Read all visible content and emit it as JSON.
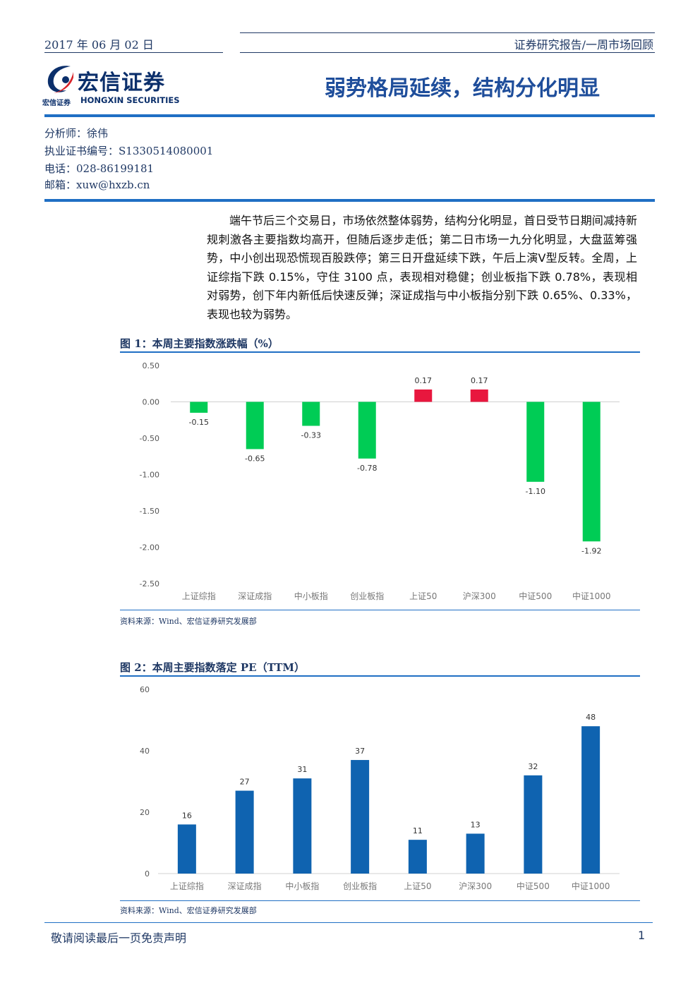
{
  "header": {
    "date": "2017 年 06 月 02 日",
    "report_type": "证券研究报告/一周市场回顾"
  },
  "logo": {
    "name_cn": "宏信证券",
    "name_en": "HONGXIN SECURITIES",
    "name_small": "宏信证券"
  },
  "title": "弱势格局延续，结构分化明显",
  "analyst": {
    "name": "分析师：徐伟",
    "cert": "执业证书编号：S1330514080001",
    "phone": "电话：028-86199181",
    "email": "邮箱：xuw@hxzb.cn"
  },
  "summary": "端午节后三个交易日，市场依然整体弱势，结构分化明显，首日受节日期间减持新规刺激各主要指数均高开，但随后逐步走低；第二日市场一九分化明显，大盘蓝筹强势，中小创出现恐慌现百股跌停；第三日开盘延续下跌，午后上演V型反转。全周，上证综指下跌 0.15%，守住 3100 点，表现相对稳健；创业板指下跌 0.78%，表现相对弱势，创下年内新低后快速反弹；深证成指与中小板指分别下跌 0.65%、0.33%，表现也较为弱势。",
  "figure1": {
    "title": "图 1：本周主要指数涨跌幅（%）",
    "source": "资料来源：Wind、宏信证券研究发展部"
  },
  "figure2": {
    "title": "图 2：本周主要指数落定 PE（TTM）",
    "source": "资料来源：Wind、宏信证券研究发展部"
  },
  "chart_data": [
    {
      "type": "bar",
      "title": "图 1：本周主要指数涨跌幅（%）",
      "categories": [
        "上证综指",
        "深证成指",
        "中小板指",
        "创业板指",
        "上证50",
        "沪深300",
        "中证500",
        "中证1000"
      ],
      "values": [
        -0.15,
        -0.65,
        -0.33,
        -0.78,
        0.17,
        0.17,
        -1.1,
        -1.92
      ],
      "value_labels": [
        "-0.15",
        "-0.65",
        "-0.33",
        "-0.78",
        "0.17",
        "0.17",
        "-1.10",
        "-1.92"
      ],
      "ylim": [
        -2.5,
        0.5
      ],
      "yticks": [
        "0.50",
        "0.00",
        "-0.50",
        "-1.00",
        "-1.50",
        "-2.00",
        "-2.50"
      ],
      "ytick_values": [
        0.5,
        0,
        -0.5,
        -1,
        -1.5,
        -2,
        -2.5
      ],
      "colors": {
        "positive": "#e8173e",
        "negative": "#00cc55"
      },
      "grid": false
    },
    {
      "type": "bar",
      "title": "图 2：本周主要指数落定 PE（TTM）",
      "categories": [
        "上证综指",
        "深证成指",
        "中小板指",
        "创业板指",
        "上证50",
        "沪深300",
        "中证500",
        "中证1000"
      ],
      "values": [
        16,
        27,
        31,
        37,
        11,
        13,
        32,
        48
      ],
      "value_labels": [
        "16",
        "27",
        "31",
        "37",
        "11",
        "13",
        "32",
        "48"
      ],
      "ylim": [
        0,
        60
      ],
      "yticks": [
        "60",
        "40",
        "20",
        "0"
      ],
      "ytick_values": [
        60,
        40,
        20,
        0
      ],
      "colors": {
        "bar": "#0f63b0"
      },
      "grid": false
    }
  ],
  "footer": {
    "disclaimer": "敬请阅读最后一页免责声明",
    "page": "1"
  }
}
